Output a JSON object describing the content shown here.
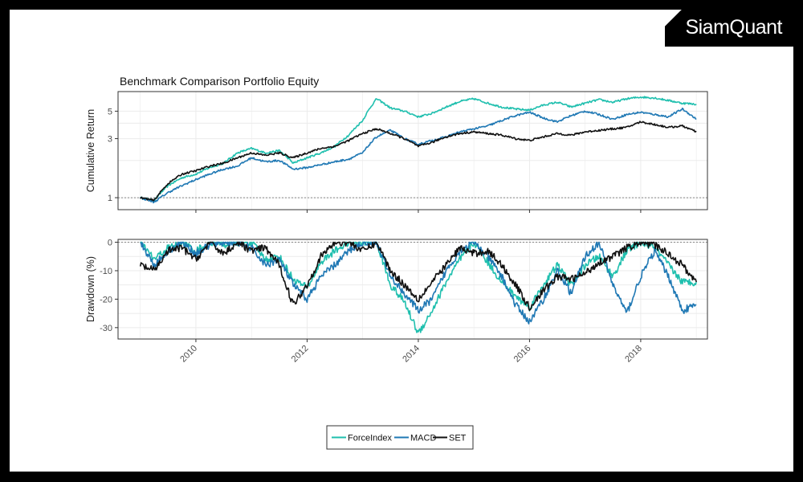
{
  "brand": {
    "name": "SiamQuant"
  },
  "colors": {
    "ForceIndex": "#1fbfae",
    "MACD": "#1f78b4",
    "SET": "#111111",
    "grid": "#ebebeb",
    "ref": "#888888"
  },
  "chart_data": [
    {
      "type": "line",
      "title": "Benchmark Comparison Portfolio Equity",
      "ylabel": "Cumulative Return",
      "xlabel": "",
      "yscale": "log",
      "ylim": [
        0.8,
        7.2
      ],
      "xlim": [
        2008.6,
        2019.2
      ],
      "yticks": [
        1,
        3,
        5
      ],
      "reference_line": 1,
      "series": [
        {
          "name": "ForceIndex",
          "x": [
            2009.0,
            2009.25,
            2009.5,
            2009.75,
            2010.0,
            2010.25,
            2010.5,
            2010.75,
            2011.0,
            2011.25,
            2011.5,
            2011.75,
            2012.0,
            2012.25,
            2012.5,
            2012.75,
            2013.0,
            2013.25,
            2013.5,
            2013.75,
            2014.0,
            2014.25,
            2014.5,
            2014.75,
            2015.0,
            2015.25,
            2015.5,
            2015.75,
            2016.0,
            2016.25,
            2016.5,
            2016.75,
            2017.0,
            2017.25,
            2017.5,
            2017.75,
            2018.0,
            2018.25,
            2018.5,
            2018.75,
            2019.0
          ],
          "values": [
            1.0,
            0.95,
            1.25,
            1.45,
            1.55,
            1.75,
            1.9,
            2.3,
            2.5,
            2.3,
            2.4,
            1.9,
            2.1,
            2.3,
            2.6,
            3.2,
            4.2,
            6.3,
            5.3,
            5.0,
            4.5,
            4.8,
            5.4,
            6.0,
            6.3,
            5.8,
            5.4,
            5.2,
            5.1,
            5.6,
            5.9,
            5.4,
            5.8,
            6.2,
            5.9,
            6.3,
            6.5,
            6.4,
            6.1,
            5.8,
            5.7
          ]
        },
        {
          "name": "MACD",
          "x": [
            2009.0,
            2009.25,
            2009.5,
            2009.75,
            2010.0,
            2010.25,
            2010.5,
            2010.75,
            2011.0,
            2011.25,
            2011.5,
            2011.75,
            2012.0,
            2012.25,
            2012.5,
            2012.75,
            2013.0,
            2013.25,
            2013.5,
            2013.75,
            2014.0,
            2014.25,
            2014.5,
            2014.75,
            2015.0,
            2015.25,
            2015.5,
            2015.75,
            2016.0,
            2016.25,
            2016.5,
            2016.75,
            2017.0,
            2017.25,
            2017.5,
            2017.75,
            2018.0,
            2018.25,
            2018.5,
            2018.75,
            2019.0
          ],
          "values": [
            1.0,
            0.92,
            1.1,
            1.25,
            1.4,
            1.55,
            1.7,
            1.8,
            2.1,
            1.95,
            2.0,
            1.7,
            1.75,
            1.85,
            1.95,
            2.05,
            2.3,
            3.1,
            3.5,
            3.0,
            2.7,
            2.9,
            3.1,
            3.4,
            3.6,
            3.8,
            4.2,
            4.6,
            4.9,
            4.4,
            4.1,
            4.6,
            5.0,
            4.7,
            4.3,
            4.7,
            4.9,
            4.7,
            4.5,
            5.2,
            4.3
          ]
        },
        {
          "name": "SET",
          "x": [
            2009.0,
            2009.25,
            2009.5,
            2009.75,
            2010.0,
            2010.25,
            2010.5,
            2010.75,
            2011.0,
            2011.25,
            2011.5,
            2011.75,
            2012.0,
            2012.25,
            2012.5,
            2012.75,
            2013.0,
            2013.25,
            2013.5,
            2013.75,
            2014.0,
            2014.25,
            2014.5,
            2014.75,
            2015.0,
            2015.25,
            2015.5,
            2015.75,
            2016.0,
            2016.25,
            2016.5,
            2016.75,
            2017.0,
            2017.25,
            2017.5,
            2017.75,
            2018.0,
            2018.25,
            2018.5,
            2018.75,
            2019.0
          ],
          "values": [
            1.0,
            0.95,
            1.3,
            1.55,
            1.65,
            1.8,
            1.9,
            2.1,
            2.3,
            2.2,
            2.3,
            2.1,
            2.3,
            2.5,
            2.6,
            2.9,
            3.3,
            3.6,
            3.3,
            3.0,
            2.6,
            2.8,
            3.1,
            3.3,
            3.4,
            3.3,
            3.2,
            3.0,
            2.9,
            3.1,
            3.3,
            3.2,
            3.4,
            3.5,
            3.6,
            3.7,
            4.1,
            3.9,
            3.7,
            3.8,
            3.4
          ]
        }
      ]
    },
    {
      "type": "line",
      "title": "",
      "ylabel": "Drawdown (%)",
      "xlabel": "",
      "ylim": [
        -34,
        1
      ],
      "xlim": [
        2008.6,
        2019.2
      ],
      "yticks": [
        0,
        -10,
        -20,
        -30
      ],
      "xticks": [
        2010,
        2012,
        2014,
        2016,
        2018
      ],
      "reference_line": 0,
      "series": [
        {
          "name": "ForceIndex",
          "x": [
            2009.0,
            2009.25,
            2009.5,
            2009.75,
            2010.0,
            2010.25,
            2010.5,
            2010.75,
            2011.0,
            2011.25,
            2011.5,
            2011.75,
            2012.0,
            2012.25,
            2012.5,
            2012.75,
            2013.0,
            2013.25,
            2013.5,
            2013.75,
            2014.0,
            2014.25,
            2014.5,
            2014.75,
            2015.0,
            2015.25,
            2015.5,
            2015.75,
            2016.0,
            2016.25,
            2016.5,
            2016.75,
            2017.0,
            2017.25,
            2017.5,
            2017.75,
            2018.0,
            2018.25,
            2018.5,
            2018.75,
            2019.0
          ],
          "values": [
            0,
            -6,
            -2,
            0,
            -3,
            0,
            -1,
            0,
            0,
            -6,
            -5,
            -13,
            -16,
            -7,
            -3,
            0,
            0,
            0,
            -15,
            -21,
            -32,
            -24,
            -14,
            -6,
            0,
            -7,
            -14,
            -19,
            -23,
            -15,
            -8,
            -15,
            -8,
            -5,
            -12,
            -3,
            0,
            -2,
            -8,
            -14,
            -14
          ]
        },
        {
          "name": "MACD",
          "x": [
            2009.0,
            2009.25,
            2009.5,
            2009.75,
            2010.0,
            2010.25,
            2010.5,
            2010.75,
            2011.0,
            2011.25,
            2011.5,
            2011.75,
            2012.0,
            2012.25,
            2012.5,
            2012.75,
            2013.0,
            2013.25,
            2013.5,
            2013.75,
            2014.0,
            2014.25,
            2014.5,
            2014.75,
            2015.0,
            2015.25,
            2015.5,
            2015.75,
            2016.0,
            2016.25,
            2016.5,
            2016.75,
            2017.0,
            2017.25,
            2017.5,
            2017.75,
            2018.0,
            2018.25,
            2018.5,
            2018.75,
            2019.0
          ],
          "values": [
            0,
            -8,
            -3,
            0,
            -4,
            -1,
            0,
            0,
            -2,
            -8,
            -6,
            -15,
            -20,
            -12,
            -8,
            -3,
            0,
            0,
            -12,
            -18,
            -24,
            -20,
            -10,
            -3,
            0,
            -5,
            -12,
            -22,
            -28,
            -20,
            -10,
            -18,
            -5,
            0,
            -15,
            -25,
            -12,
            -3,
            -12,
            -24,
            -22
          ]
        },
        {
          "name": "SET",
          "x": [
            2009.0,
            2009.25,
            2009.5,
            2009.75,
            2010.0,
            2010.25,
            2010.5,
            2010.75,
            2011.0,
            2011.25,
            2011.5,
            2011.75,
            2012.0,
            2012.25,
            2012.5,
            2012.75,
            2013.0,
            2013.25,
            2013.5,
            2013.75,
            2014.0,
            2014.25,
            2014.5,
            2014.75,
            2015.0,
            2015.25,
            2015.5,
            2015.75,
            2016.0,
            2016.25,
            2016.5,
            2016.75,
            2017.0,
            2017.25,
            2017.5,
            2017.75,
            2018.0,
            2018.25,
            2018.5,
            2018.75,
            2019.0
          ],
          "values": [
            -8,
            -10,
            -3,
            -2,
            -6,
            0,
            -4,
            0,
            -3,
            -2,
            -8,
            -22,
            -15,
            -5,
            0,
            0,
            -3,
            0,
            -10,
            -15,
            -20,
            -14,
            -8,
            -2,
            -4,
            -3,
            -8,
            -15,
            -23,
            -17,
            -12,
            -13,
            -11,
            -7,
            -5,
            -2,
            0,
            -1,
            -4,
            -8,
            -14
          ]
        }
      ]
    }
  ],
  "legend": {
    "title": "",
    "items": [
      "ForceIndex",
      "MACD",
      "SET"
    ],
    "position": "bottom"
  }
}
